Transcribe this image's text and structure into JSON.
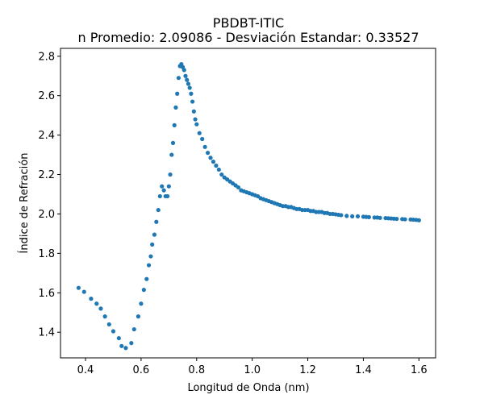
{
  "chart_data": {
    "type": "scatter",
    "title": "PBDBT-ITIC",
    "subtitle": "n Promedio: 2.09086 - Desviación Estandar: 0.33527",
    "xlabel": "Longitud de Onda (nm)",
    "ylabel": "Índice de Refración",
    "xlim": [
      0.31,
      1.66
    ],
    "ylim": [
      1.27,
      2.84
    ],
    "xticks": [
      0.4,
      0.6,
      0.8,
      1.0,
      1.2,
      1.4,
      1.6
    ],
    "xtick_labels": [
      "0.4",
      "0.6",
      "0.8",
      "1.0",
      "1.2",
      "1.4",
      "1.6"
    ],
    "yticks": [
      1.4,
      1.6,
      1.8,
      2.0,
      2.2,
      2.4,
      2.6,
      2.8
    ],
    "ytick_labels": [
      "1.4",
      "1.6",
      "1.8",
      "2.0",
      "2.2",
      "2.4",
      "2.6",
      "2.8"
    ],
    "grid": false,
    "marker_color": "#1f77b4",
    "series": [
      {
        "x": [
          0.375,
          0.395,
          0.42,
          0.44,
          0.455,
          0.47,
          0.485,
          0.5,
          0.52,
          0.53,
          0.545,
          0.565,
          0.575,
          0.59,
          0.6,
          0.61,
          0.62,
          0.628,
          0.635,
          0.64,
          0.648,
          0.655,
          0.662,
          0.668,
          0.675,
          0.682,
          0.688,
          0.695,
          0.7,
          0.705,
          0.71,
          0.715,
          0.72,
          0.725,
          0.73,
          0.735,
          0.74,
          0.745,
          0.75,
          0.755,
          0.76,
          0.765,
          0.77,
          0.775,
          0.78,
          0.785,
          0.79,
          0.795,
          0.8,
          0.81,
          0.82,
          0.83,
          0.84,
          0.85,
          0.86,
          0.87,
          0.88,
          0.89,
          0.9,
          0.91,
          0.92,
          0.93,
          0.94,
          0.95,
          0.96,
          0.97,
          0.98,
          0.99,
          1.0,
          1.01,
          1.02,
          1.03,
          1.04,
          1.05,
          1.06,
          1.07,
          1.08,
          1.09,
          1.1,
          1.11,
          1.12,
          1.13,
          1.14,
          1.15,
          1.16,
          1.17,
          1.18,
          1.19,
          1.2,
          1.21,
          1.22,
          1.23,
          1.24,
          1.25,
          1.26,
          1.27,
          1.28,
          1.29,
          1.3,
          1.31,
          1.32,
          1.34,
          1.36,
          1.38,
          1.4,
          1.41,
          1.42,
          1.44,
          1.45,
          1.46,
          1.48,
          1.49,
          1.5,
          1.51,
          1.52,
          1.54,
          1.55,
          1.57,
          1.58,
          1.59,
          1.6
        ],
        "y": [
          1.625,
          1.605,
          1.57,
          1.545,
          1.52,
          1.48,
          1.44,
          1.405,
          1.37,
          1.33,
          1.32,
          1.345,
          1.415,
          1.48,
          1.545,
          1.615,
          1.67,
          1.74,
          1.785,
          1.845,
          1.895,
          1.96,
          2.02,
          2.09,
          2.14,
          2.12,
          2.09,
          2.09,
          2.14,
          2.2,
          2.3,
          2.36,
          2.45,
          2.54,
          2.61,
          2.69,
          2.75,
          2.76,
          2.745,
          2.73,
          2.7,
          2.68,
          2.66,
          2.64,
          2.61,
          2.57,
          2.52,
          2.48,
          2.455,
          2.41,
          2.38,
          2.34,
          2.31,
          2.285,
          2.265,
          2.245,
          2.225,
          2.2,
          2.185,
          2.175,
          2.165,
          2.155,
          2.145,
          2.135,
          2.12,
          2.115,
          2.11,
          2.105,
          2.1,
          2.095,
          2.09,
          2.08,
          2.075,
          2.07,
          2.065,
          2.06,
          2.055,
          2.05,
          2.045,
          2.04,
          2.04,
          2.035,
          2.035,
          2.03,
          2.025,
          2.025,
          2.02,
          2.02,
          2.02,
          2.015,
          2.015,
          2.01,
          2.01,
          2.01,
          2.005,
          2.005,
          2.0,
          2.0,
          1.998,
          1.996,
          1.994,
          1.99,
          1.988,
          1.988,
          1.986,
          1.985,
          1.984,
          1.982,
          1.982,
          1.98,
          1.979,
          1.978,
          1.977,
          1.976,
          1.975,
          1.974,
          1.973,
          1.972,
          1.971,
          1.97,
          1.968
        ]
      }
    ]
  }
}
